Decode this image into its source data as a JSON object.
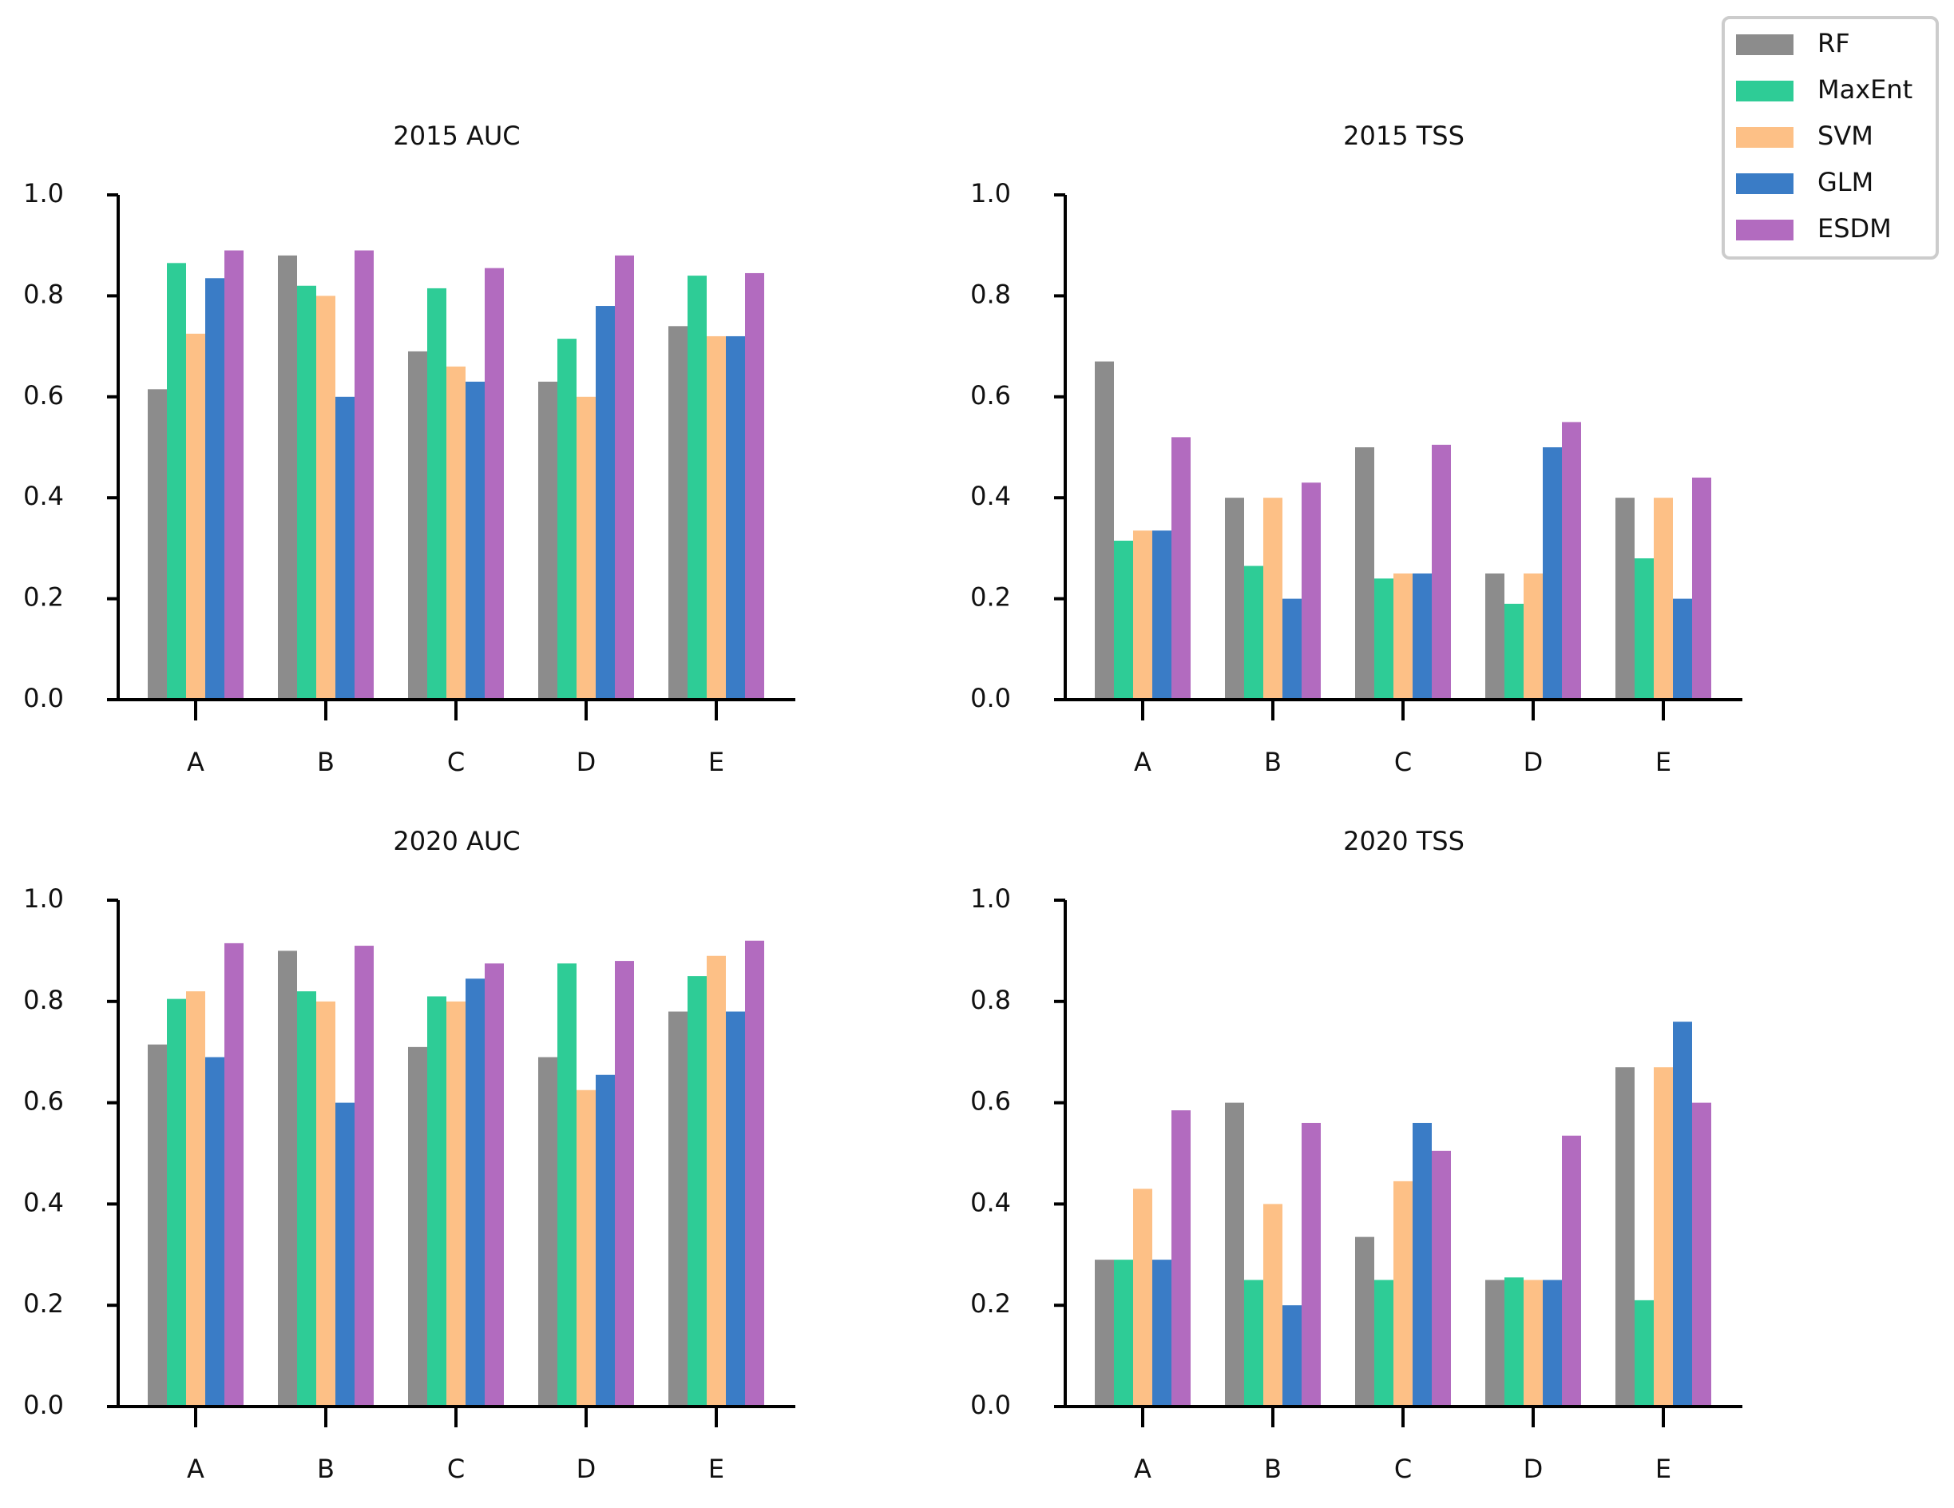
{
  "chart_data": [
    {
      "type": "bar",
      "title": "2015 AUC",
      "categories": [
        "A",
        "B",
        "C",
        "D",
        "E"
      ],
      "series": [
        {
          "name": "RF",
          "color": "#8c8c8c",
          "values": [
            0.615,
            0.88,
            0.69,
            0.63,
            0.74
          ]
        },
        {
          "name": "MaxEnt",
          "color": "#2ecc96",
          "values": [
            0.865,
            0.82,
            0.815,
            0.715,
            0.84
          ]
        },
        {
          "name": "SVM",
          "color": "#fdc086",
          "values": [
            0.725,
            0.8,
            0.66,
            0.6,
            0.72
          ]
        },
        {
          "name": "GLM",
          "color": "#3a7cc6",
          "values": [
            0.835,
            0.6,
            0.63,
            0.78,
            0.72
          ]
        },
        {
          "name": "ESDM",
          "color": "#b26bbf",
          "values": [
            0.89,
            0.89,
            0.855,
            0.88,
            0.845
          ]
        }
      ],
      "ylim": [
        0,
        1
      ],
      "yticks": [
        {
          "value": 0,
          "label": "0.0"
        },
        0.2,
        0.4,
        0.6,
        0.8,
        {
          "value": 1,
          "label": "1.0"
        }
      ],
      "legend": "upper right"
    },
    {
      "type": "bar",
      "title": "2015 TSS",
      "categories": [
        "A",
        "B",
        "C",
        "D",
        "E"
      ],
      "series": [
        {
          "name": "RF",
          "color": "#8c8c8c",
          "values": [
            0.67,
            0.4,
            0.5,
            0.25,
            0.4
          ]
        },
        {
          "name": "MaxEnt",
          "color": "#2ecc96",
          "values": [
            0.315,
            0.265,
            0.24,
            0.19,
            0.28
          ]
        },
        {
          "name": "SVM",
          "color": "#fdc086",
          "values": [
            0.335,
            0.4,
            0.25,
            0.25,
            0.4
          ]
        },
        {
          "name": "GLM",
          "color": "#3a7cc6",
          "values": [
            0.335,
            0.2,
            0.25,
            0.5,
            0.2
          ]
        },
        {
          "name": "ESDM",
          "color": "#b26bbf",
          "values": [
            0.52,
            0.43,
            0.505,
            0.55,
            0.44
          ]
        }
      ],
      "ylim": [
        0,
        1
      ],
      "yticks": [
        {
          "value": 0,
          "label": "0.0"
        },
        0.2,
        0.4,
        0.6,
        0.8,
        {
          "value": 1,
          "label": "1.0"
        }
      ]
    },
    {
      "type": "bar",
      "title": "2020 AUC",
      "categories": [
        "A",
        "B",
        "C",
        "D",
        "E"
      ],
      "series": [
        {
          "name": "RF",
          "color": "#8c8c8c",
          "values": [
            0.715,
            0.9,
            0.71,
            0.69,
            0.78
          ]
        },
        {
          "name": "MaxEnt",
          "color": "#2ecc96",
          "values": [
            0.805,
            0.82,
            0.81,
            0.875,
            0.85
          ]
        },
        {
          "name": "SVM",
          "color": "#fdc086",
          "values": [
            0.82,
            0.8,
            0.8,
            0.625,
            0.89
          ]
        },
        {
          "name": "GLM",
          "color": "#3a7cc6",
          "values": [
            0.69,
            0.6,
            0.845,
            0.655,
            0.78
          ]
        },
        {
          "name": "ESDM",
          "color": "#b26bbf",
          "values": [
            0.915,
            0.91,
            0.875,
            0.88,
            0.92
          ]
        }
      ],
      "ylim": [
        0,
        1
      ],
      "yticks": [
        {
          "value": 0,
          "label": "0.0"
        },
        0.2,
        0.4,
        0.6,
        0.8,
        {
          "value": 1,
          "label": "1.0"
        }
      ]
    },
    {
      "type": "bar",
      "title": "2020 TSS",
      "categories": [
        "A",
        "B",
        "C",
        "D",
        "E"
      ],
      "series": [
        {
          "name": "RF",
          "color": "#8c8c8c",
          "values": [
            0.29,
            0.6,
            0.335,
            0.25,
            0.67
          ]
        },
        {
          "name": "MaxEnt",
          "color": "#2ecc96",
          "values": [
            0.29,
            0.25,
            0.25,
            0.255,
            0.21
          ]
        },
        {
          "name": "SVM",
          "color": "#fdc086",
          "values": [
            0.43,
            0.4,
            0.445,
            0.25,
            0.67
          ]
        },
        {
          "name": "GLM",
          "color": "#3a7cc6",
          "values": [
            0.29,
            0.2,
            0.56,
            0.25,
            0.76
          ]
        },
        {
          "name": "ESDM",
          "color": "#b26bbf",
          "values": [
            0.585,
            0.56,
            0.505,
            0.535,
            0.6
          ]
        }
      ],
      "ylim": [
        0,
        1
      ],
      "yticks": [
        {
          "value": 0,
          "label": "0.0"
        },
        0.2,
        0.4,
        0.6,
        0.8,
        {
          "value": 1,
          "label": "1.0"
        }
      ]
    }
  ]
}
